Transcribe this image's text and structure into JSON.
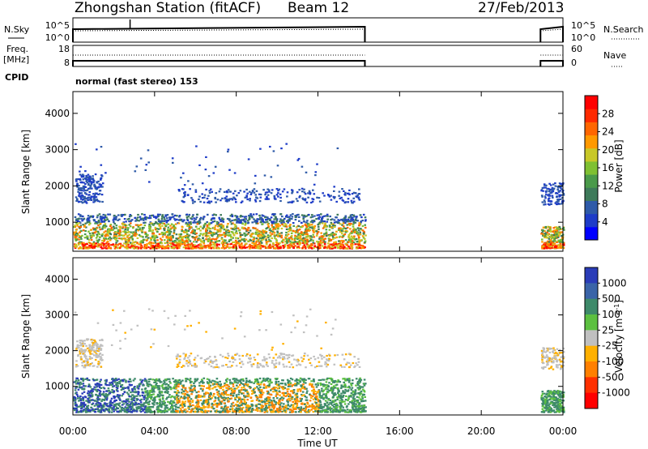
{
  "header": {
    "station_title": "Zhongshan Station (fitACF)",
    "beam": "Beam 12",
    "date": "27/Feb/2013"
  },
  "nsky_panel": {
    "left_label": "N.Sky",
    "right_label": "N.Search",
    "left_ticks": [
      "10^5",
      "10^0"
    ],
    "right_ticks": [
      "10^5",
      "10^0"
    ]
  },
  "freq_panel": {
    "left_label_1": "Freq.",
    "left_label_2": "[MHz]",
    "right_label": "Nave",
    "left_ticks": [
      "18",
      "8"
    ],
    "right_ticks": [
      "60",
      "0"
    ]
  },
  "cpid": {
    "label": "CPID",
    "value": "normal (fast stereo) 153"
  },
  "xaxis": {
    "label": "Time UT",
    "ticks": [
      "00:00",
      "04:00",
      "08:00",
      "12:00",
      "16:00",
      "20:00",
      "00:00"
    ]
  },
  "chart_data": [
    {
      "type": "heatmap",
      "name": "power-panel",
      "ylabel": "Slant Range [km]",
      "yticks": [
        "1000",
        "2000",
        "3000",
        "4000"
      ],
      "ylim": [
        200,
        4600
      ],
      "x_ticks_hours": [
        0,
        4,
        8,
        12,
        16,
        20,
        24
      ],
      "colorbar": {
        "label": "Power [dB]",
        "ticks": [
          "4",
          "8",
          "12",
          "16",
          "20",
          "24",
          "28"
        ],
        "range": [
          0,
          32
        ],
        "colors": [
          "#0000ff",
          "#1e3cc8",
          "#2e5aa8",
          "#3e7a5a",
          "#4a9a4a",
          "#7fc032",
          "#c8c828",
          "#ff9900",
          "#ff6600",
          "#ff2a00",
          "#ff0000"
        ]
      },
      "observed_segments_hours": [
        [
          0.0,
          14.3
        ],
        [
          22.9,
          24.0
        ]
      ]
    },
    {
      "type": "heatmap",
      "name": "velocity-panel",
      "ylabel": "Slant Range [km]",
      "yticks": [
        "1000",
        "2000",
        "3000",
        "4000"
      ],
      "ylim": [
        200,
        4600
      ],
      "x_ticks_hours": [
        0,
        4,
        8,
        12,
        16,
        20,
        24
      ],
      "colorbar": {
        "label": "Velocity [m s^-1]",
        "ticks": [
          "1000",
          "500",
          "100",
          "25",
          "-25",
          "-100",
          "-500",
          "-1000"
        ],
        "colors": [
          "#2a3cb8",
          "#3a64a8",
          "#3e8a6a",
          "#5cc040",
          "#c0c0c0",
          "#ffb000",
          "#ff8000",
          "#ff3000",
          "#ff0000"
        ]
      },
      "observed_segments_hours": [
        [
          0.0,
          14.3
        ],
        [
          22.9,
          24.0
        ]
      ]
    }
  ]
}
